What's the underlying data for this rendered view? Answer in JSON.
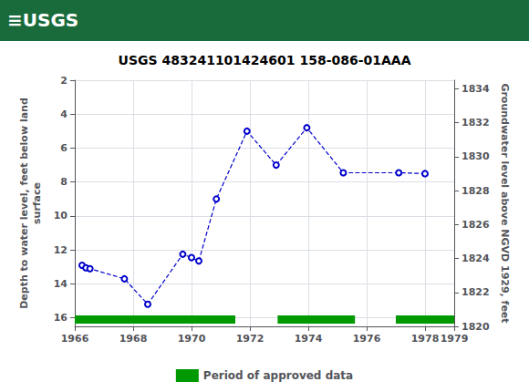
{
  "chart_data": {
    "type": "line",
    "title": "USGS 483241101424601 158-086-01AAA",
    "annotations": [
      {
        "text": "≡USGS",
        "color": "#1a6b3c"
      }
    ],
    "ylabel": "Depth to water level, feet below land\nsurface",
    "y2label": "Groundwater level above NGVD 1929, feet",
    "x": [
      1966.25,
      1966.38,
      1966.52,
      1967.7,
      1968.5,
      1969.7,
      1970.0,
      1970.25,
      1970.85,
      1971.9,
      1972.9,
      1973.95,
      1975.2,
      1977.1,
      1978.0
    ],
    "series": [
      {
        "type": "line",
        "color": "#0000CC",
        "marker": "open_circle",
        "line_style": "dashed",
        "values": [
          12.9,
          13.05,
          13.1,
          13.7,
          15.2,
          12.25,
          12.45,
          12.65,
          9.0,
          5.0,
          7.0,
          4.8,
          7.45,
          7.45,
          7.5
        ]
      },
      {
        "type": "bar",
        "orientation": "horizontal",
        "name": "Period of approved data",
        "color": "#009900",
        "ranges": [
          [
            1966.0,
            1971.5
          ],
          [
            1972.95,
            1975.6
          ],
          [
            1977.0,
            1979.0
          ]
        ]
      }
    ],
    "xlim": [
      1966,
      1979
    ],
    "xticks": [
      1966,
      1968,
      1970,
      1972,
      1974,
      1976,
      1978
    ],
    "ylim": [
      16.5,
      2
    ],
    "yticks": [
      2,
      4,
      6,
      8,
      10,
      12,
      14,
      16
    ],
    "y2lim": [
      1820,
      1834.5
    ],
    "y2ticks": [
      1834,
      1832,
      1830,
      1828,
      1826,
      1824,
      1822,
      1820
    ],
    "grid": true,
    "legend": "bottom"
  }
}
